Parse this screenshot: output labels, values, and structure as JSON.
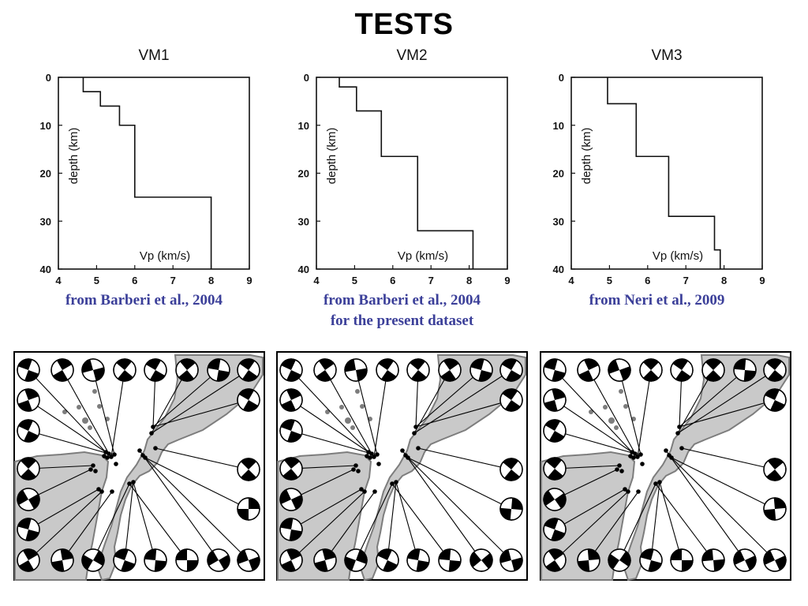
{
  "title": "TESTS",
  "colors": {
    "text": "#111111",
    "source_text": "#3b3f99",
    "land": "#c9c9c9",
    "coast": "#7d7d7d",
    "compression": "#000000"
  },
  "chart_data": [
    {
      "type": "line",
      "title": "VM1",
      "xlabel": "Vp (km/s)",
      "ylabel": "depth (km)",
      "xlim": [
        4,
        9
      ],
      "ylim": [
        0,
        40
      ],
      "y_inverted": true,
      "xticks": [
        4,
        5,
        6,
        7,
        8,
        9
      ],
      "yticks": [
        0,
        10,
        20,
        30,
        40
      ],
      "grid": false,
      "caption": [
        "from Barberi et al., 2004"
      ],
      "layers": [
        {
          "vp": 4.65,
          "top": 0,
          "bottom": 3
        },
        {
          "vp": 5.1,
          "top": 3,
          "bottom": 6
        },
        {
          "vp": 5.6,
          "top": 6,
          "bottom": 10
        },
        {
          "vp": 6.0,
          "top": 10,
          "bottom": 25
        },
        {
          "vp": 8.0,
          "top": 25,
          "bottom": 40
        }
      ]
    },
    {
      "type": "line",
      "title": "VM2",
      "xlabel": "Vp (km/s)",
      "ylabel": "depth (km)",
      "xlim": [
        4,
        9
      ],
      "ylim": [
        0,
        40
      ],
      "y_inverted": true,
      "xticks": [
        4,
        5,
        6,
        7,
        8,
        9
      ],
      "yticks": [
        0,
        10,
        20,
        30,
        40
      ],
      "grid": false,
      "caption": [
        "from Barberi et al., 2004",
        "for the present dataset"
      ],
      "layers": [
        {
          "vp": 4.6,
          "top": 0,
          "bottom": 2
        },
        {
          "vp": 5.05,
          "top": 2,
          "bottom": 7
        },
        {
          "vp": 5.7,
          "top": 7,
          "bottom": 16.5
        },
        {
          "vp": 6.65,
          "top": 16.5,
          "bottom": 32
        },
        {
          "vp": 8.1,
          "top": 32,
          "bottom": 40
        }
      ]
    },
    {
      "type": "line",
      "title": "VM3",
      "xlabel": "Vp (km/s)",
      "ylabel": "depth (km)",
      "xlim": [
        4,
        9
      ],
      "ylim": [
        0,
        40
      ],
      "y_inverted": true,
      "xticks": [
        4,
        5,
        6,
        7,
        8,
        9
      ],
      "yticks": [
        0,
        10,
        20,
        30,
        40
      ],
      "grid": false,
      "caption": [
        "from Neri et al., 2009"
      ],
      "layers": [
        {
          "vp": 4.95,
          "top": 0,
          "bottom": 5.5
        },
        {
          "vp": 5.7,
          "top": 5.5,
          "bottom": 16.5
        },
        {
          "vp": 6.55,
          "top": 16.5,
          "bottom": 29
        },
        {
          "vp": 7.75,
          "top": 29,
          "bottom": 36
        },
        {
          "vp": 7.9,
          "top": 36,
          "bottom": 40
        }
      ]
    }
  ],
  "focal_mechanism_maps": [
    {
      "name": "VM1",
      "rotations": [
        20,
        60,
        -15,
        40,
        30,
        50,
        10,
        35,
        70,
        25,
        45,
        -30,
        15,
        60,
        80,
        120,
        20,
        5,
        0,
        150,
        -20,
        30,
        45,
        90,
        10,
        40
      ]
    },
    {
      "name": "VM2",
      "rotations": [
        25,
        55,
        -10,
        35,
        40,
        55,
        15,
        30,
        65,
        20,
        50,
        -25,
        10,
        65,
        75,
        110,
        25,
        10,
        5,
        140,
        -15,
        35,
        40,
        95,
        15,
        35
      ]
    },
    {
      "name": "VM3",
      "rotations": [
        15,
        65,
        -20,
        45,
        35,
        45,
        5,
        40,
        75,
        30,
        40,
        -35,
        20,
        55,
        85,
        125,
        15,
        0,
        -5,
        155,
        -25,
        25,
        50,
        85,
        5,
        45
      ]
    }
  ]
}
